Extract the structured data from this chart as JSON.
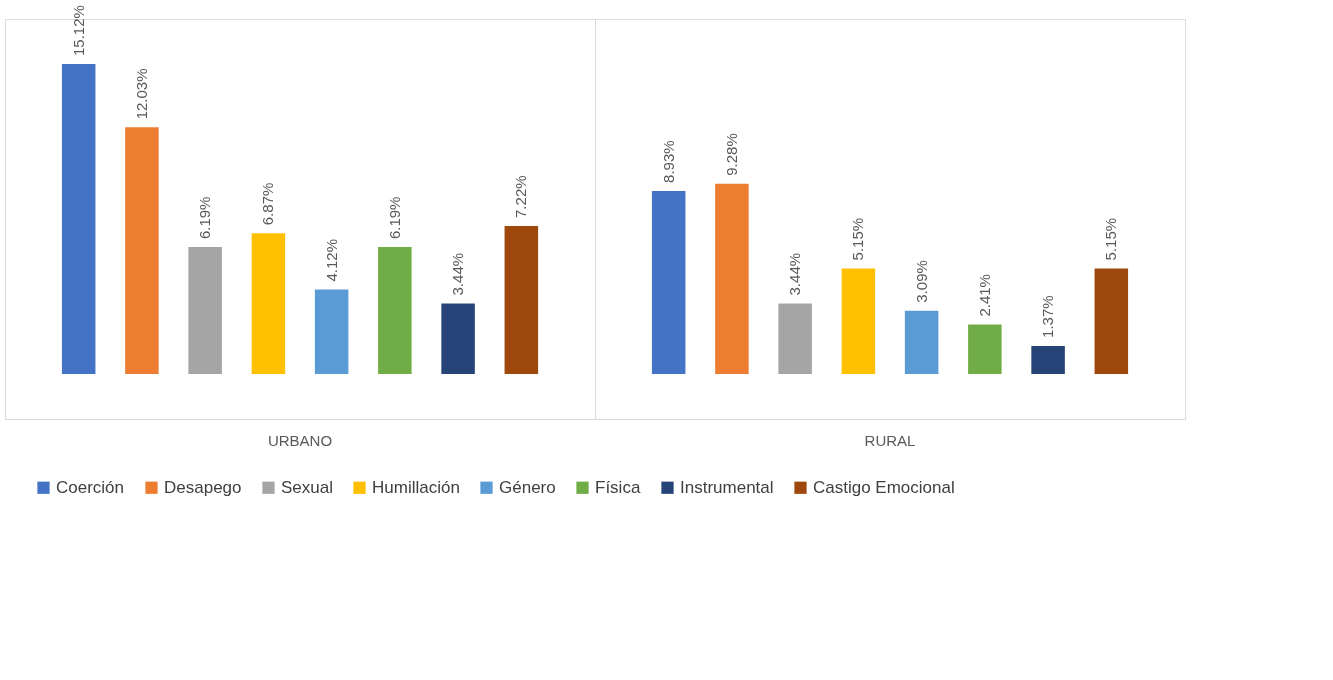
{
  "chart_data": {
    "type": "bar",
    "categories": [
      "URBANO",
      "RURAL"
    ],
    "series": [
      {
        "name": "Coerción",
        "color": "#4472c4",
        "values": [
          15.12,
          8.93
        ],
        "value_labels": [
          "15.12%",
          "8.93%"
        ]
      },
      {
        "name": "Desapego",
        "color": "#ed7d31",
        "values": [
          12.03,
          9.28
        ],
        "value_labels": [
          "12.03%",
          "9.28%"
        ]
      },
      {
        "name": "Sexual",
        "color": "#a5a5a5",
        "values": [
          6.19,
          3.44
        ],
        "value_labels": [
          "6.19%",
          "3.44%"
        ]
      },
      {
        "name": "Humillación",
        "color": "#ffc000",
        "values": [
          6.87,
          5.15
        ],
        "value_labels": [
          "6.87%",
          "5.15%"
        ]
      },
      {
        "name": "Género",
        "color": "#5b9bd5",
        "values": [
          4.12,
          3.09
        ],
        "value_labels": [
          "4.12%",
          "3.09%"
        ]
      },
      {
        "name": "Física",
        "color": "#70ad47",
        "values": [
          6.19,
          2.41
        ],
        "value_labels": [
          "6.19%",
          "2.41%"
        ]
      },
      {
        "name": "Instrumental",
        "color": "#264478",
        "values": [
          3.44,
          1.37
        ],
        "value_labels": [
          "3.44%",
          "1.37%"
        ]
      },
      {
        "name": "Castigo Emocional",
        "color": "#9e480e",
        "values": [
          7.22,
          5.15
        ],
        "value_labels": [
          "7.22%",
          "5.15%"
        ]
      }
    ],
    "legend": "bottom",
    "tick_labels": "x"
  }
}
